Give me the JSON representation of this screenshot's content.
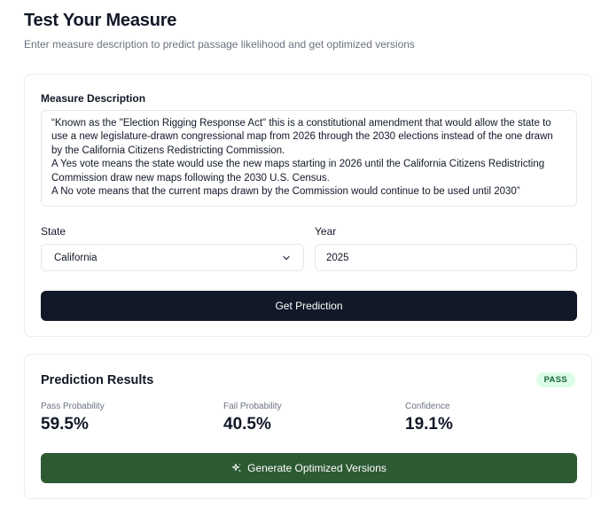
{
  "header": {
    "title": "Test Your Measure",
    "subtitle": "Enter measure description to predict passage likelihood and get optimized versions"
  },
  "form": {
    "description_label": "Measure Description",
    "description_value": "“Known as the \"Election Rigging Response Act\" this is a constitutional amendment that would allow the state to use a new legislature-drawn congressional map from 2026 through the 2030 elections instead of the one drawn by the California Citizens Redistricting Commission.\nA Yes vote means the state would use the new maps starting in 2026 until the California Citizens Redistricting Commission draw new maps following the 2030 U.S. Census.\nA No vote means that the current maps drawn by the Commission would continue to be used until 2030”",
    "state_label": "State",
    "state_value": "California",
    "year_label": "Year",
    "year_value": "2025",
    "submit_label": "Get Prediction"
  },
  "results": {
    "title": "Prediction Results",
    "badge": "PASS",
    "pass_label": "Pass Probability",
    "pass_value": "59.5%",
    "fail_label": "Fail Probability",
    "fail_value": "40.5%",
    "confidence_label": "Confidence",
    "confidence_value": "19.1%",
    "optimize_label": "Generate Optimized Versions"
  },
  "colors": {
    "primary_button": "#111827",
    "optimize_button": "#2d5a32",
    "badge_bg": "#dcfce7",
    "badge_text": "#166534"
  },
  "icons": {
    "state_select": "chevron-down-icon",
    "optimize": "sparkles-icon"
  }
}
